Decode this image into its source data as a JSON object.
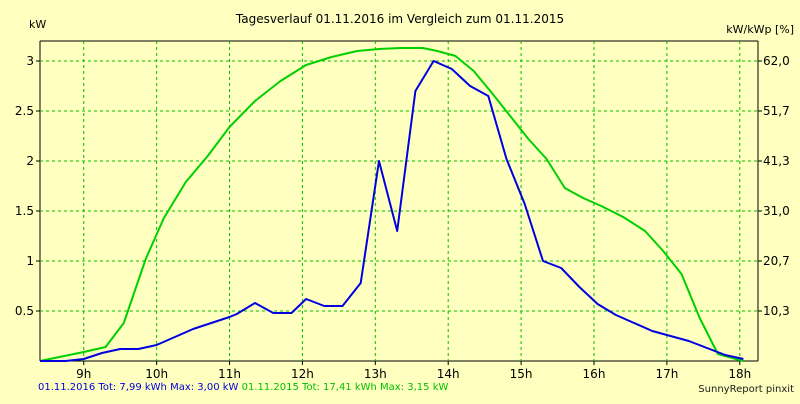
{
  "chart_data": {
    "type": "line",
    "title": "Tagesverlauf 01.11.2016 im Vergleich zum 01.11.2015",
    "ylabel_left": "kW",
    "ylabel_right": "kW/kWp [%]",
    "x_tick_labels": [
      "9h",
      "10h",
      "11h",
      "12h",
      "13h",
      "14h",
      "15h",
      "16h",
      "17h",
      "18h"
    ],
    "x_tick_values": [
      9,
      10,
      11,
      12,
      13,
      14,
      15,
      16,
      17,
      18
    ],
    "xlim": [
      8.4,
      18.25
    ],
    "ylim": [
      0,
      3.2
    ],
    "y_ticks_left": [
      0.5,
      1,
      1.5,
      2,
      2.5,
      3
    ],
    "y_tick_labels_left": [
      "0.5",
      "1",
      "1.5",
      "2",
      "2.5",
      "3"
    ],
    "y_ticks_right_values": [
      0.5,
      1,
      1.5,
      2,
      2.5,
      3
    ],
    "y_tick_labels_right": [
      "10,3",
      "20,7",
      "31,0",
      "41,3",
      "51,7",
      "62,0"
    ],
    "grid": true,
    "series": [
      {
        "name": "01.11.2016",
        "color": "#0000e0",
        "x": [
          8.4,
          8.75,
          9.0,
          9.25,
          9.5,
          9.75,
          10.0,
          10.25,
          10.5,
          10.75,
          11.0,
          11.1,
          11.35,
          11.6,
          11.85,
          12.05,
          12.3,
          12.55,
          12.8,
          13.05,
          13.3,
          13.55,
          13.8,
          14.05,
          14.3,
          14.55,
          14.8,
          15.05,
          15.3,
          15.55,
          15.8,
          16.05,
          16.3,
          16.55,
          16.8,
          17.05,
          17.3,
          17.55,
          17.8,
          18.05
        ],
        "y": [
          0,
          0,
          0.02,
          0.08,
          0.12,
          0.12,
          0.16,
          0.24,
          0.32,
          0.38,
          0.44,
          0.47,
          0.58,
          0.48,
          0.48,
          0.62,
          0.55,
          0.55,
          0.78,
          2.0,
          1.3,
          2.7,
          3.0,
          2.92,
          2.75,
          2.65,
          2.02,
          1.57,
          1.0,
          0.93,
          0.74,
          0.57,
          0.46,
          0.38,
          0.3,
          0.25,
          0.2,
          0.13,
          0.06,
          0.02
        ]
      },
      {
        "name": "01.11.2015",
        "color": "#00d000",
        "x": [
          8.4,
          9.0,
          9.3,
          9.55,
          9.85,
          10.1,
          10.4,
          10.7,
          11.0,
          11.35,
          11.7,
          12.05,
          12.4,
          12.75,
          13.05,
          13.35,
          13.65,
          13.85,
          14.1,
          14.35,
          14.6,
          14.85,
          15.1,
          15.35,
          15.6,
          15.85,
          16.1,
          16.4,
          16.7,
          16.95,
          17.2,
          17.45,
          17.7,
          18.05
        ],
        "y": [
          0,
          0.09,
          0.14,
          0.38,
          1.02,
          1.43,
          1.79,
          2.05,
          2.34,
          2.6,
          2.8,
          2.96,
          3.04,
          3.1,
          3.12,
          3.13,
          3.13,
          3.1,
          3.05,
          2.9,
          2.68,
          2.45,
          2.22,
          2.02,
          1.73,
          1.63,
          1.55,
          1.44,
          1.3,
          1.1,
          0.87,
          0.43,
          0.07,
          0.0
        ]
      }
    ]
  },
  "footer": {
    "s2016": "01.11.2016 Tot: 7,99 kWh Max: 3,00 kW",
    "s2015": "01.11.2015 Tot: 17,41 kWh Max: 3,15 kW",
    "credit": "SunnyReport pinxit"
  },
  "colors": {
    "background": "#ffffc0",
    "grid": "#00c000",
    "series2016": "#0000e0",
    "series2015": "#00d000"
  }
}
